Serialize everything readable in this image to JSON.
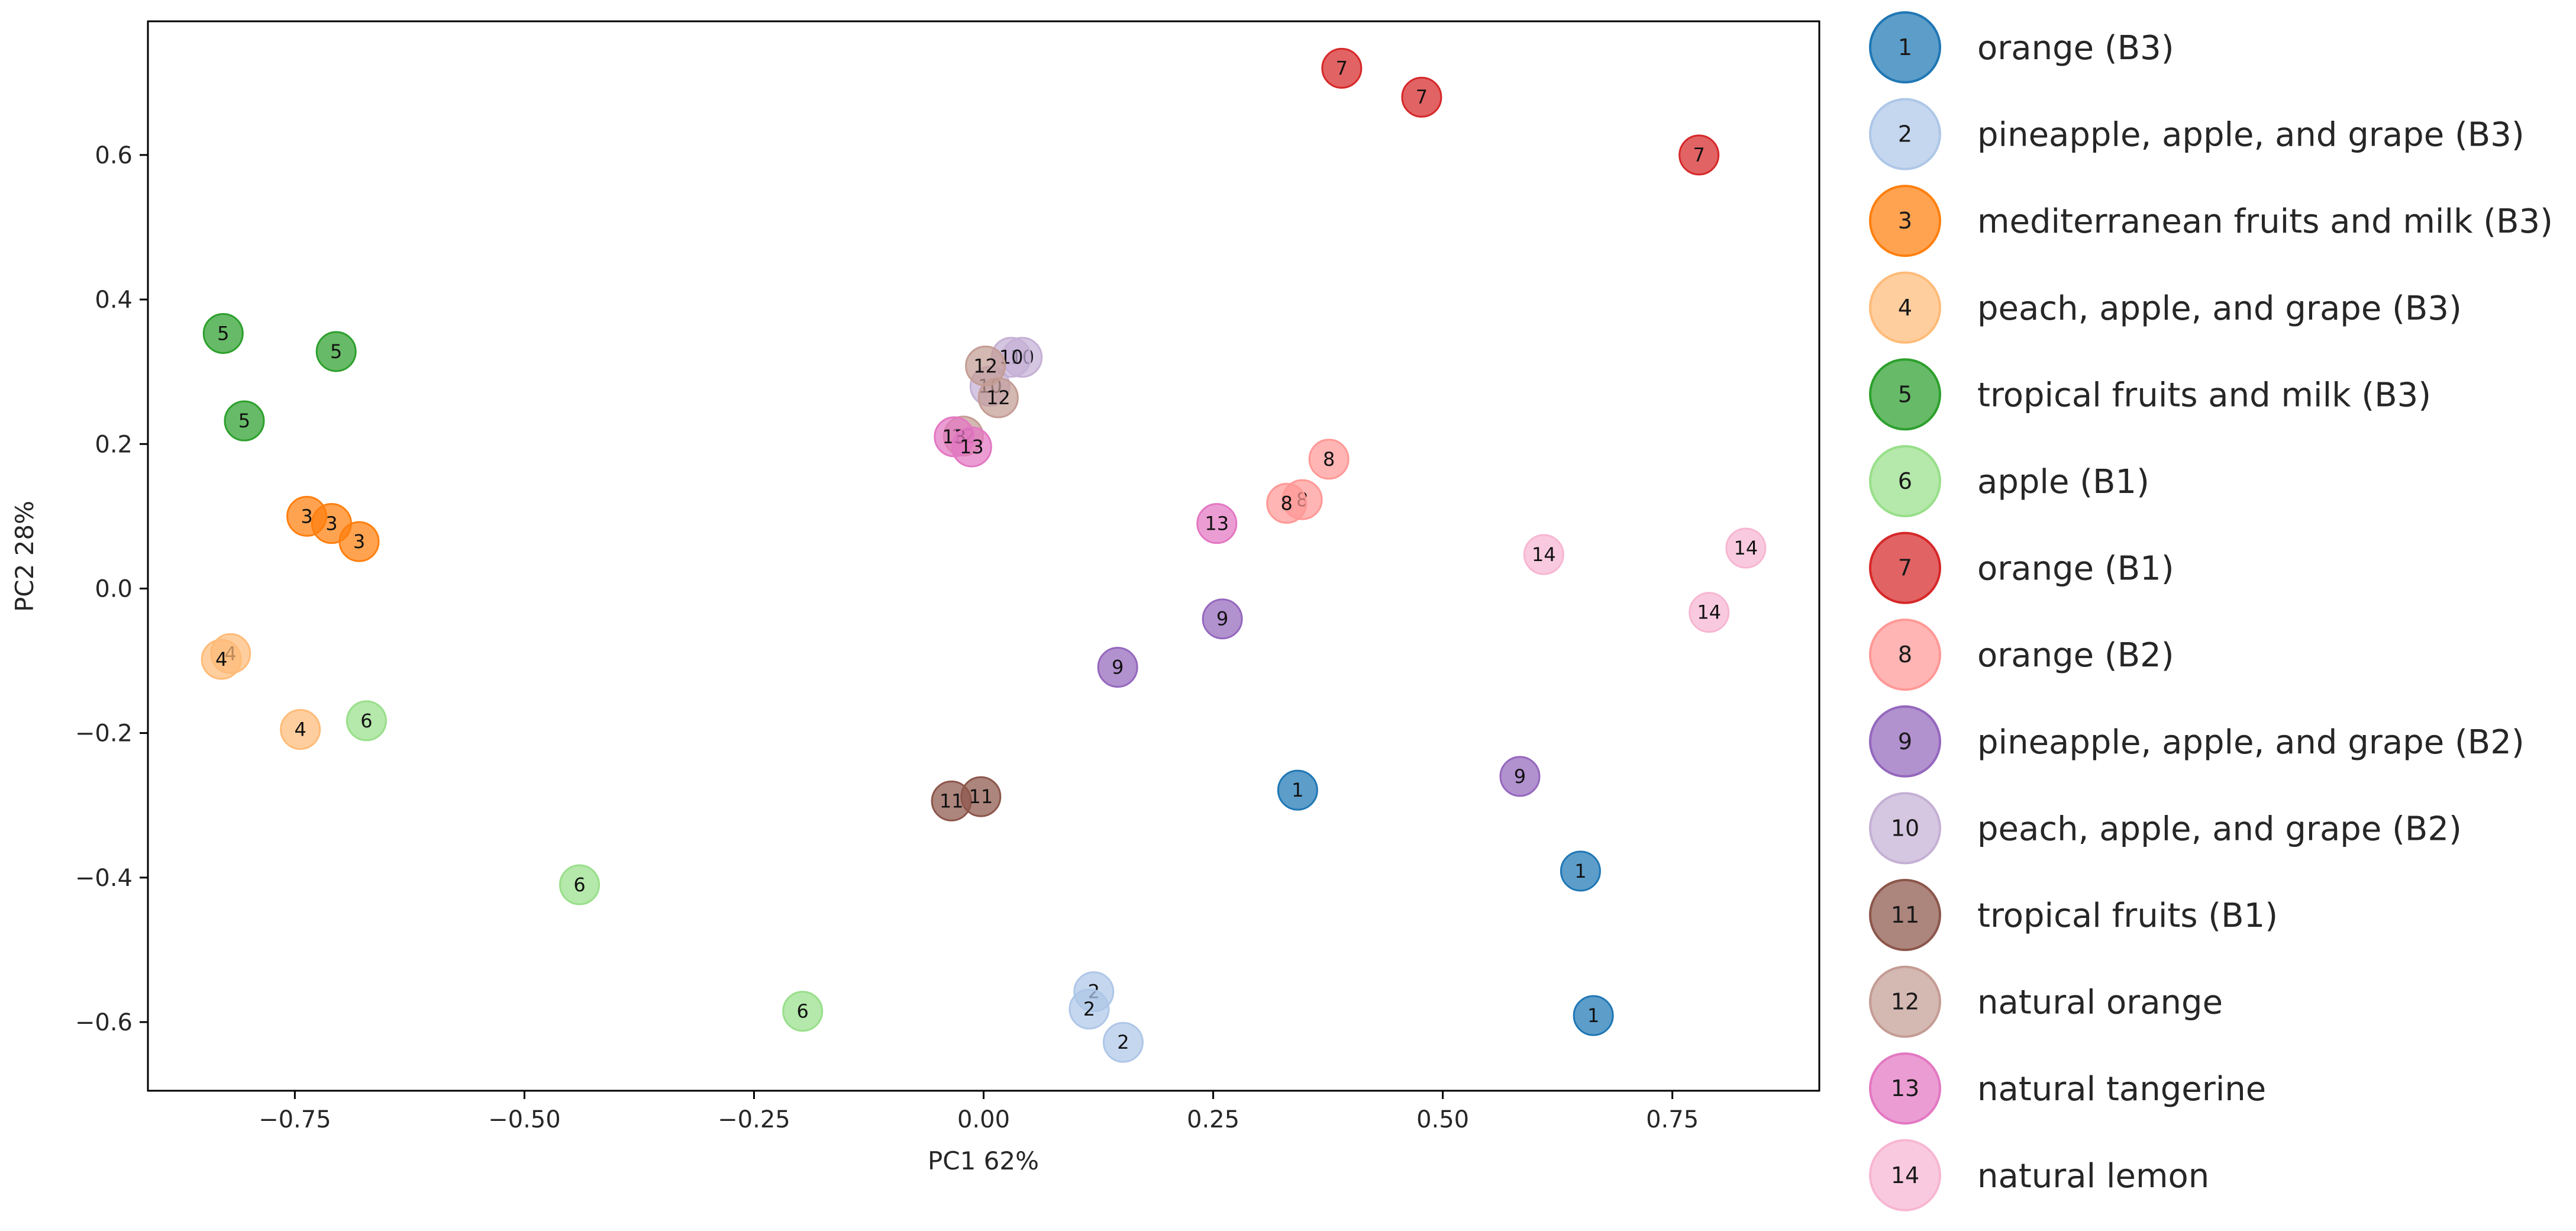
{
  "chart_data": {
    "type": "scatter",
    "title": "",
    "xlabel": "PC1  62%",
    "ylabel": "PC2  28%",
    "xlim": [
      -0.91,
      0.91
    ],
    "ylim": [
      -0.695,
      0.785
    ],
    "grid": false,
    "legend_placement": "outside-right",
    "xticks": [
      -0.75,
      -0.5,
      -0.25,
      0.0,
      0.25,
      0.5,
      0.75
    ],
    "xtick_labels": [
      "−0.75",
      "−0.50",
      "−0.25",
      "0.00",
      "0.25",
      "0.50",
      "0.75"
    ],
    "yticks": [
      -0.6,
      -0.4,
      -0.2,
      0.0,
      0.2,
      0.4,
      0.6
    ],
    "ytick_labels": [
      "−0.6",
      "−0.4",
      "−0.2",
      "0.0",
      "0.2",
      "0.4",
      "0.6"
    ],
    "series": [
      {
        "id": "1",
        "name": "orange (B3)",
        "color": "#1f77b4",
        "points": [
          [
            0.342,
            -0.279
          ],
          [
            0.65,
            -0.391
          ],
          [
            0.664,
            -0.591
          ]
        ]
      },
      {
        "id": "2",
        "name": "pineapple, apple, and grape (B3)",
        "color": "#aec7e8",
        "points": [
          [
            0.12,
            -0.558
          ],
          [
            0.115,
            -0.582
          ],
          [
            0.152,
            -0.628
          ]
        ]
      },
      {
        "id": "3",
        "name": "mediterranean fruits and milk (B3)",
        "color": "#ff7f0e",
        "points": [
          [
            -0.737,
            0.1
          ],
          [
            -0.71,
            0.09
          ],
          [
            -0.68,
            0.065
          ]
        ]
      },
      {
        "id": "4",
        "name": "peach, apple, and grape (B3)",
        "color": "#ffbb78",
        "points": [
          [
            -0.82,
            -0.09
          ],
          [
            -0.83,
            -0.098
          ],
          [
            -0.744,
            -0.195
          ]
        ]
      },
      {
        "id": "5",
        "name": "tropical fruits and milk (B3)",
        "color": "#2ca02c",
        "points": [
          [
            -0.828,
            0.353
          ],
          [
            -0.705,
            0.328
          ],
          [
            -0.805,
            0.232
          ]
        ]
      },
      {
        "id": "6",
        "name": "apple (B1)",
        "color": "#98df8a",
        "points": [
          [
            -0.672,
            -0.183
          ],
          [
            -0.44,
            -0.41
          ],
          [
            -0.197,
            -0.585
          ]
        ]
      },
      {
        "id": "7",
        "name": "orange (B1)",
        "color": "#d62728",
        "points": [
          [
            0.39,
            0.72
          ],
          [
            0.477,
            0.68
          ],
          [
            0.779,
            0.6
          ]
        ]
      },
      {
        "id": "8",
        "name": "orange (B2)",
        "color": "#ff9896",
        "points": [
          [
            0.376,
            0.179
          ],
          [
            0.347,
            0.123
          ],
          [
            0.33,
            0.118
          ]
        ]
      },
      {
        "id": "9",
        "name": "pineapple, apple, and grape (B2)",
        "color": "#9467bd",
        "points": [
          [
            0.26,
            -0.042
          ],
          [
            0.146,
            -0.109
          ],
          [
            0.584,
            -0.26
          ]
        ]
      },
      {
        "id": "10",
        "name": "peach, apple, and grape (B2)",
        "color": "#c5b0d5",
        "points": [
          [
            0.042,
            0.32
          ],
          [
            0.03,
            0.32
          ],
          [
            0.007,
            0.28
          ]
        ]
      },
      {
        "id": "11",
        "name": "tropical fruits (B1)",
        "color": "#8c564b",
        "points": [
          [
            -0.035,
            -0.294
          ],
          [
            -0.003,
            -0.288
          ]
        ]
      },
      {
        "id": "12",
        "name": "natural orange",
        "color": "#c49c94",
        "points": [
          [
            0.002,
            0.308
          ],
          [
            0.016,
            0.264
          ],
          [
            -0.022,
            0.211
          ]
        ]
      },
      {
        "id": "13",
        "name": "natural tangerine",
        "color": "#e377c2",
        "points": [
          [
            -0.032,
            0.21
          ],
          [
            -0.013,
            0.196
          ],
          [
            0.254,
            0.09
          ]
        ]
      },
      {
        "id": "14",
        "name": "natural lemon",
        "color": "#f7b6d2",
        "points": [
          [
            0.61,
            0.047
          ],
          [
            0.83,
            0.056
          ],
          [
            0.79,
            -0.033
          ]
        ]
      }
    ]
  }
}
